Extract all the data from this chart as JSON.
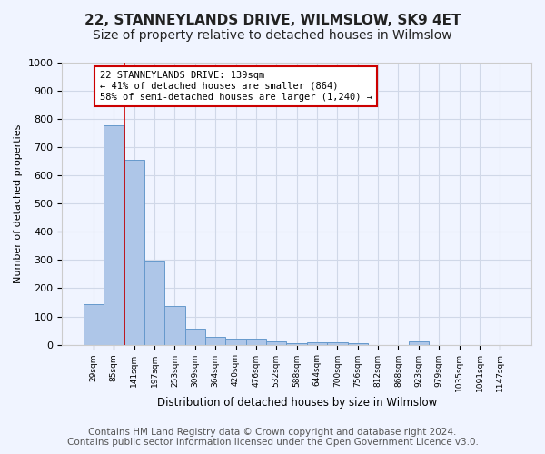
{
  "title": "22, STANNEYLANDS DRIVE, WILMSLOW, SK9 4ET",
  "subtitle": "Size of property relative to detached houses in Wilmslow",
  "xlabel": "Distribution of detached houses by size in Wilmslow",
  "ylabel": "Number of detached properties",
  "bar_values": [
    143,
    778,
    655,
    298,
    138,
    57,
    29,
    21,
    21,
    12,
    5,
    7,
    7,
    5,
    0,
    0,
    10,
    0,
    0,
    0,
    0
  ],
  "bin_labels": [
    "29sqm",
    "85sqm",
    "141sqm",
    "197sqm",
    "253sqm",
    "309sqm",
    "364sqm",
    "420sqm",
    "476sqm",
    "532sqm",
    "588sqm",
    "644sqm",
    "700sqm",
    "756sqm",
    "812sqm",
    "868sqm",
    "923sqm",
    "979sqm",
    "1035sqm",
    "1091sqm",
    "1147sqm"
  ],
  "bar_color": "#aec6e8",
  "bar_edge_color": "#6699cc",
  "grid_color": "#d0d8e8",
  "background_color": "#f0f4ff",
  "property_bin_index": 2,
  "vline_x_offset": 1.5,
  "annotation_text": "22 STANNEYLANDS DRIVE: 139sqm\n← 41% of detached houses are smaller (864)\n58% of semi-detached houses are larger (1,240) →",
  "annotation_box_color": "#ffffff",
  "annotation_box_edge_color": "#cc0000",
  "ylim": [
    0,
    1000
  ],
  "yticks": [
    0,
    100,
    200,
    300,
    400,
    500,
    600,
    700,
    800,
    900,
    1000
  ],
  "footer_line1": "Contains HM Land Registry data © Crown copyright and database right 2024.",
  "footer_line2": "Contains public sector information licensed under the Open Government Licence v3.0.",
  "title_fontsize": 11,
  "subtitle_fontsize": 10,
  "footer_fontsize": 7.5,
  "vline_color": "#cc0000"
}
